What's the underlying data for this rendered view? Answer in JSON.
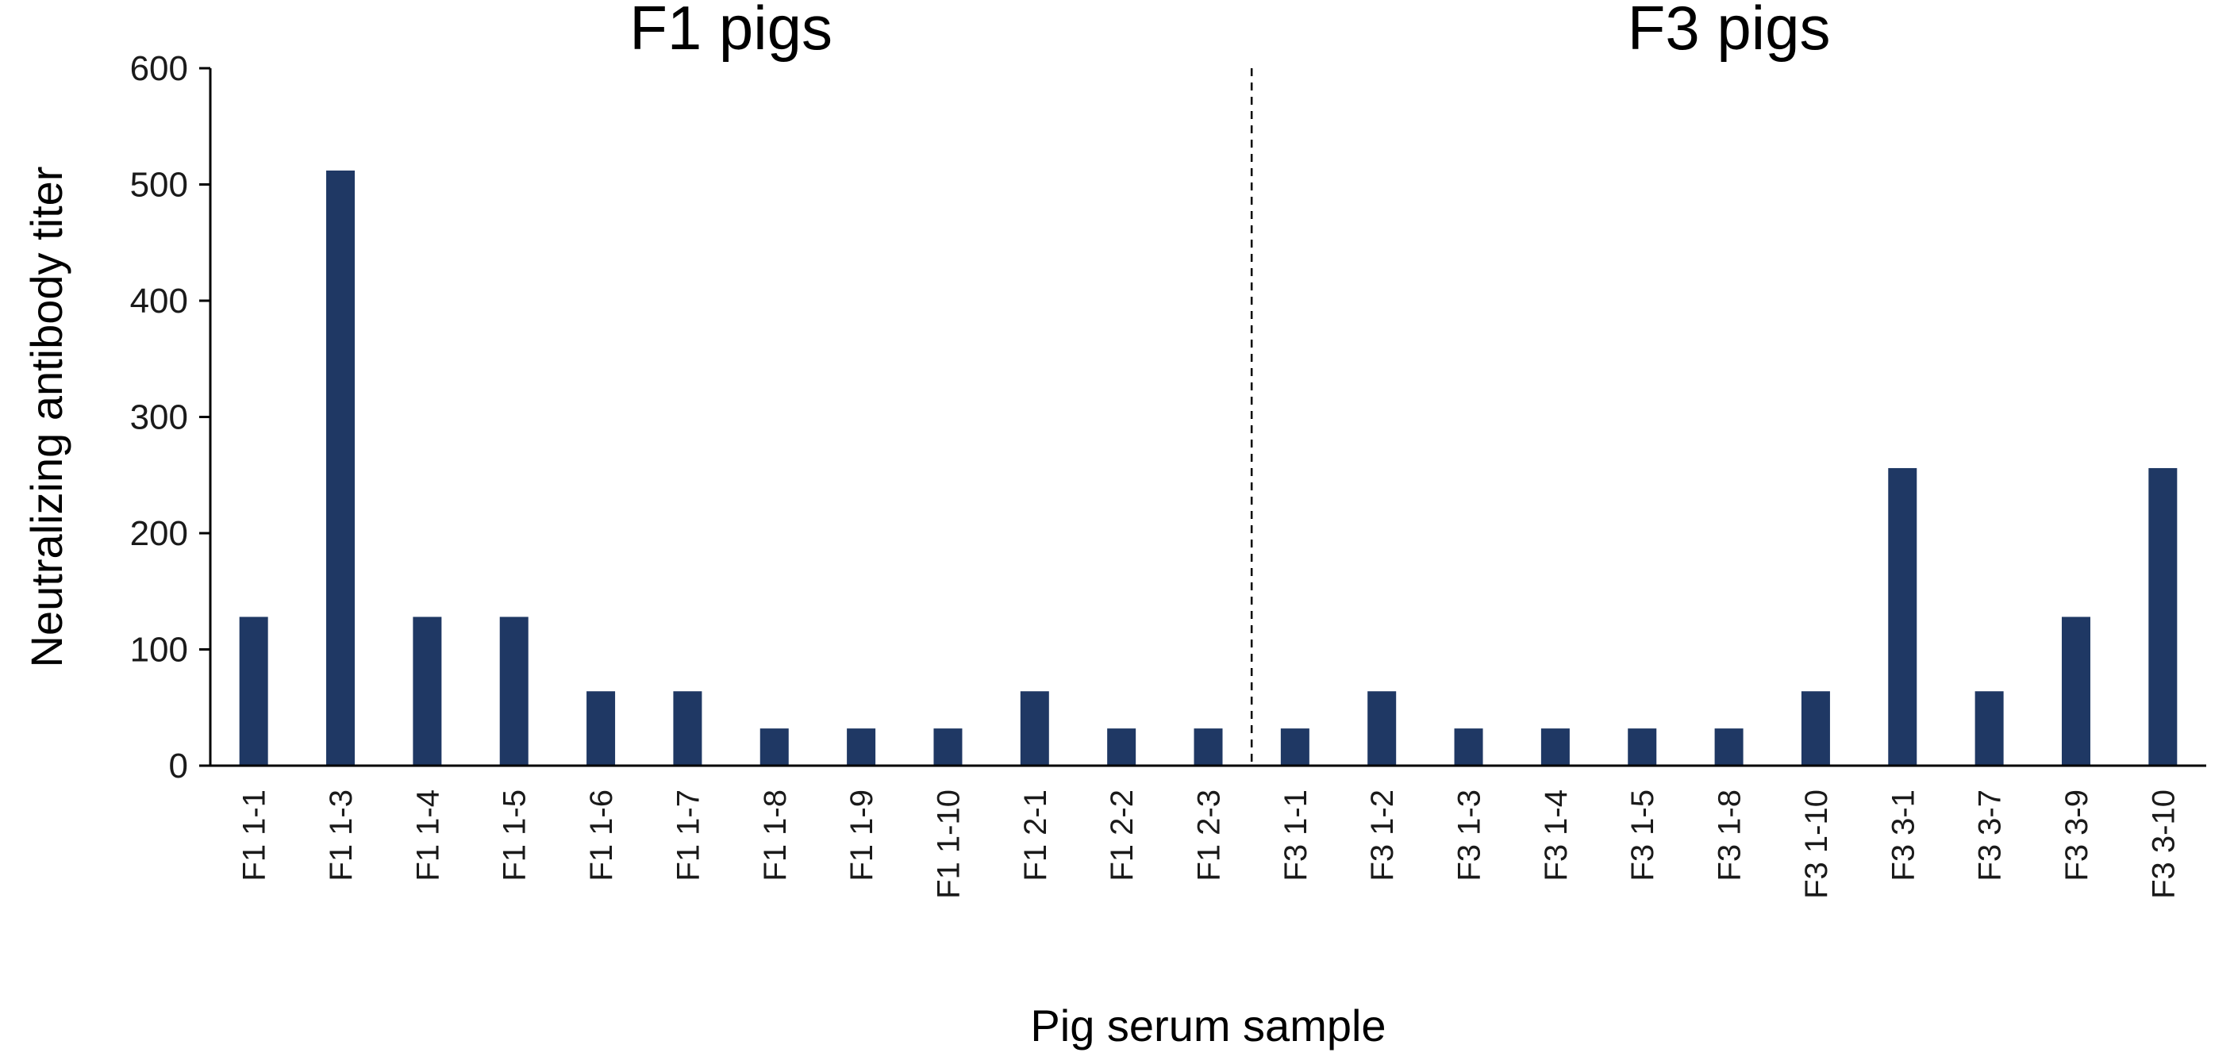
{
  "chart_data": {
    "type": "bar",
    "categories": [
      "F1 1-1",
      "F1 1-3",
      "F1 1-4",
      "F1 1-5",
      "F1 1-6",
      "F1 1-7",
      "F1 1-8",
      "F1 1-9",
      "F1 1-10",
      "F1 2-1",
      "F1 2-2",
      "F1 2-3",
      "F3 1-1",
      "F3 1-2",
      "F3 1-3",
      "F3 1-4",
      "F3 1-5",
      "F3 1-8",
      "F3 1-10",
      "F3 3-1",
      "F3 3-7",
      "F3 3-9",
      "F3 3-10"
    ],
    "values": [
      128,
      512,
      128,
      128,
      64,
      64,
      32,
      32,
      32,
      64,
      32,
      32,
      32,
      64,
      32,
      32,
      32,
      32,
      64,
      256,
      64,
      128,
      256
    ],
    "xlabel": "Pig serum sample",
    "ylabel": "Neutralizing antibody titer",
    "ylim": [
      0,
      600
    ],
    "yticks": [
      0,
      100,
      200,
      300,
      400,
      500,
      600
    ],
    "bar_color": "#1f3864",
    "grid": false,
    "groups": [
      {
        "label": "F1 pigs",
        "from": 0,
        "to": 11
      },
      {
        "label": "F3 pigs",
        "from": 12,
        "to": 22
      }
    ],
    "divider_style": "dashed"
  }
}
